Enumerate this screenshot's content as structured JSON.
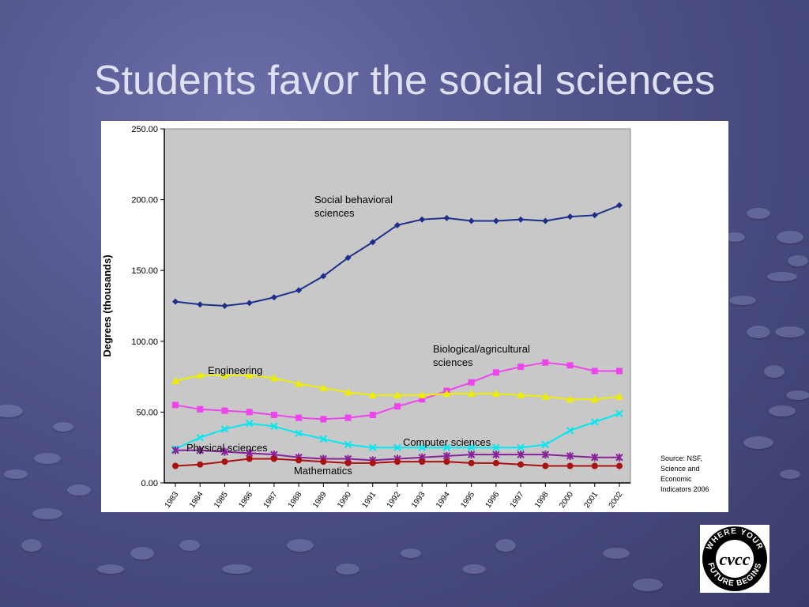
{
  "slide": {
    "title": "Students favor the social sciences"
  },
  "logo": {
    "ring_text": "WHERE YOUR FUTURE BEGINS",
    "monogram": "CVCC"
  },
  "colors": {
    "background": "#4f5288",
    "title": "#e0e0f4",
    "plot_area": "#c8c8c8"
  },
  "chart_data": {
    "type": "line",
    "title": "",
    "xlabel": "",
    "ylabel": "Degrees (thousands)",
    "ylim": [
      0,
      250
    ],
    "yticks": [
      "0.00",
      "50.00",
      "100.00",
      "150.00",
      "200.00",
      "250.00"
    ],
    "categories": [
      "1983",
      "1984",
      "1985",
      "1986",
      "1987",
      "1988",
      "1989",
      "1990",
      "1991",
      "1992",
      "1993",
      "1994",
      "1995",
      "1996",
      "1997",
      "1998",
      "2000",
      "2001",
      "2002"
    ],
    "grid": false,
    "source_note": [
      "Source: NSF,",
      "Science and",
      "Economic",
      "Indicators 2006"
    ],
    "series": [
      {
        "name": "Social behavioral sciences",
        "label_lines": [
          "Social behavioral",
          "sciences"
        ],
        "color": "#1f2e8a",
        "marker": "diamond",
        "values": [
          128,
          126,
          125,
          127,
          131,
          136,
          146,
          159,
          170,
          182,
          186,
          187,
          185,
          185,
          186,
          185,
          188,
          189,
          196
        ]
      },
      {
        "name": "Biological/agricultural sciences",
        "label_lines": [
          "Biological/agricultural",
          "sciences"
        ],
        "color": "#ee44ee",
        "marker": "square",
        "values": [
          55,
          52,
          51,
          50,
          48,
          46,
          45,
          46,
          48,
          54,
          59,
          65,
          71,
          78,
          82,
          85,
          83,
          79,
          79
        ]
      },
      {
        "name": "Engineering",
        "label_lines": [
          "Engineering"
        ],
        "color": "#eeee00",
        "marker": "triangle",
        "values": [
          72,
          76,
          76,
          76,
          74,
          70,
          67,
          64,
          62,
          62,
          62,
          63,
          63,
          63,
          62,
          61,
          59,
          59,
          61
        ]
      },
      {
        "name": "Computer sciences",
        "label_lines": [
          "Computer sciences"
        ],
        "color": "#00e8f0",
        "marker": "x",
        "values": [
          24,
          32,
          38,
          42,
          40,
          35,
          31,
          27,
          25,
          25,
          25,
          25,
          25,
          25,
          25,
          27,
          37,
          43,
          49
        ]
      },
      {
        "name": "Physical sciences",
        "label_lines": [
          "Physical sciences"
        ],
        "color": "#882299",
        "marker": "star",
        "values": [
          23,
          23,
          22,
          21,
          20,
          18,
          17,
          17,
          16,
          17,
          18,
          19,
          20,
          20,
          20,
          20,
          19,
          18,
          18
        ]
      },
      {
        "name": "Mathematics",
        "label_lines": [
          "Mathematics"
        ],
        "color": "#aa1111",
        "marker": "circle",
        "values": [
          12,
          13,
          15,
          17,
          17,
          16,
          15,
          14,
          14,
          15,
          15,
          15,
          14,
          14,
          13,
          12,
          12,
          12,
          12
        ]
      }
    ]
  }
}
